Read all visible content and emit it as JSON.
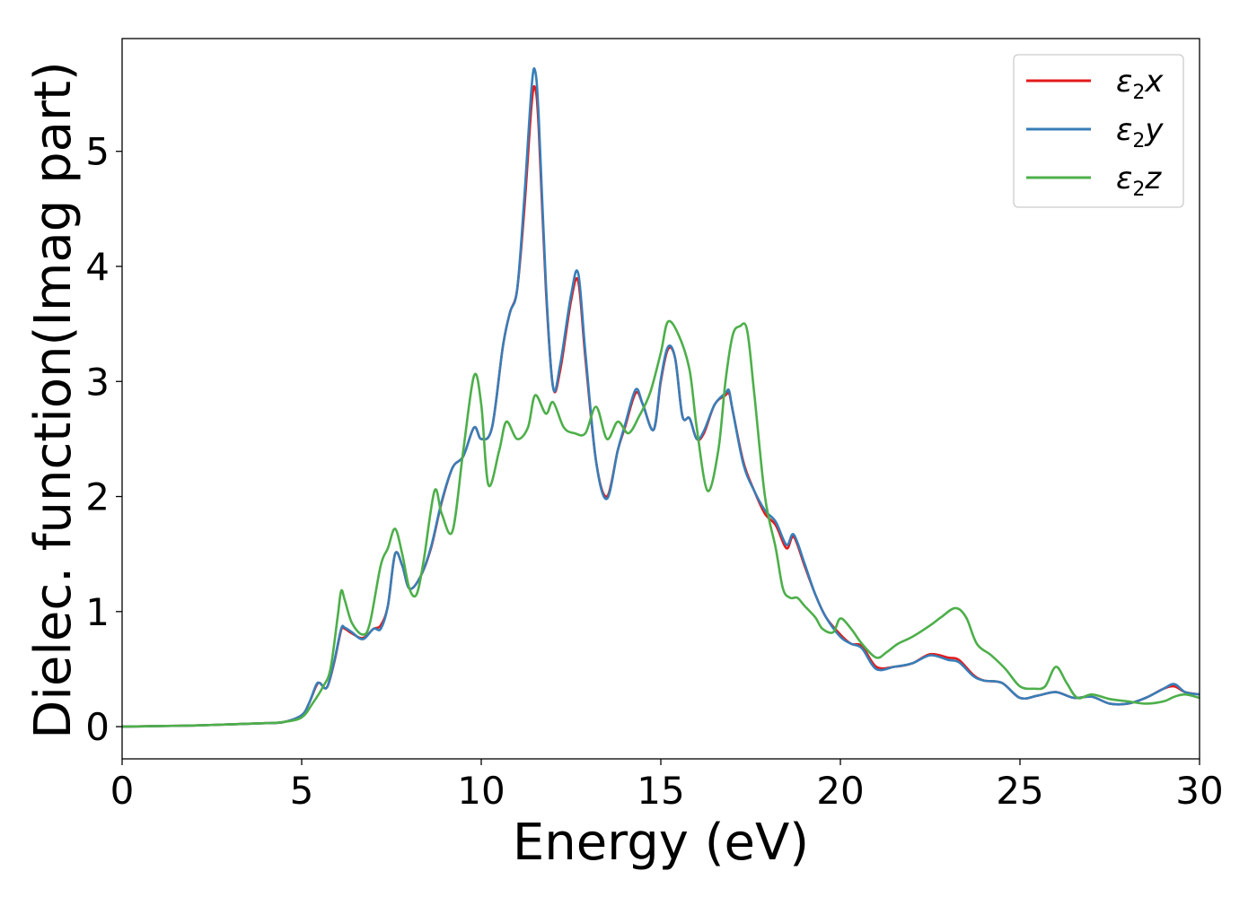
{
  "chart_data": {
    "type": "line",
    "title": "",
    "xlabel": "Energy (eV)",
    "ylabel": "Dielec. function(Imag part)",
    "xlim": [
      0,
      30
    ],
    "ylim": [
      -0.28,
      5.98
    ],
    "xticks": [
      "0",
      "5",
      "10",
      "15",
      "20",
      "25",
      "30"
    ],
    "yticks": [
      "0",
      "1",
      "2",
      "3",
      "4",
      "5"
    ],
    "grid": false,
    "legend_position": "top-right",
    "series": [
      {
        "name": "ε₂x",
        "legend_symbol": "ε",
        "legend_subscript": "2",
        "legend_axis": "x",
        "color": "#e41a1c",
        "x": [
          0,
          1,
          2,
          3,
          4,
          4.5,
          5,
          5.2,
          5.4,
          5.5,
          5.7,
          5.9,
          6.1,
          6.2,
          6.4,
          6.7,
          7.0,
          7.2,
          7.4,
          7.6,
          7.8,
          8.0,
          8.3,
          8.6,
          8.9,
          9.2,
          9.5,
          9.8,
          10.0,
          10.3,
          10.6,
          10.8,
          11.0,
          11.2,
          11.4,
          11.5,
          11.6,
          11.8,
          12.0,
          12.2,
          12.5,
          12.7,
          12.9,
          13.2,
          13.5,
          13.8,
          14.0,
          14.3,
          14.5,
          14.8,
          15.0,
          15.2,
          15.4,
          15.6,
          15.8,
          16.0,
          16.2,
          16.5,
          16.8,
          16.9,
          17.0,
          17.3,
          17.6,
          17.9,
          18.2,
          18.5,
          18.7,
          19.0,
          19.3,
          19.6,
          20.0,
          20.3,
          20.6,
          21.0,
          21.5,
          22.0,
          22.5,
          23.0,
          23.3,
          23.7,
          24.0,
          24.5,
          25.0,
          25.5,
          26.0,
          26.5,
          27.0,
          27.5,
          28.0,
          28.5,
          29.0,
          29.3,
          29.6,
          30.0
        ],
        "y": [
          0.0,
          0.005,
          0.01,
          0.02,
          0.03,
          0.04,
          0.1,
          0.2,
          0.35,
          0.38,
          0.34,
          0.55,
          0.84,
          0.85,
          0.81,
          0.77,
          0.85,
          0.88,
          1.05,
          1.5,
          1.4,
          1.2,
          1.3,
          1.55,
          1.95,
          2.25,
          2.35,
          2.6,
          2.5,
          2.6,
          3.3,
          3.6,
          3.8,
          4.5,
          5.4,
          5.55,
          5.2,
          3.8,
          2.95,
          3.1,
          3.7,
          3.87,
          3.2,
          2.3,
          2.0,
          2.4,
          2.6,
          2.9,
          2.8,
          2.58,
          3.0,
          3.28,
          3.2,
          2.7,
          2.68,
          2.5,
          2.55,
          2.8,
          2.88,
          2.9,
          2.75,
          2.3,
          2.05,
          1.85,
          1.75,
          1.55,
          1.65,
          1.4,
          1.15,
          0.95,
          0.8,
          0.72,
          0.7,
          0.52,
          0.52,
          0.55,
          0.63,
          0.6,
          0.58,
          0.45,
          0.4,
          0.38,
          0.25,
          0.27,
          0.3,
          0.25,
          0.26,
          0.2,
          0.2,
          0.25,
          0.33,
          0.35,
          0.3,
          0.28
        ]
      },
      {
        "name": "ε₂y",
        "legend_symbol": "ε",
        "legend_subscript": "2",
        "legend_axis": "y",
        "color": "#377eb8",
        "x": [
          0,
          1,
          2,
          3,
          4,
          4.5,
          5,
          5.2,
          5.4,
          5.5,
          5.7,
          5.9,
          6.1,
          6.2,
          6.4,
          6.7,
          7.0,
          7.2,
          7.4,
          7.6,
          7.8,
          8.0,
          8.3,
          8.6,
          8.9,
          9.2,
          9.5,
          9.8,
          10.0,
          10.3,
          10.6,
          10.8,
          11.0,
          11.2,
          11.4,
          11.5,
          11.6,
          11.8,
          12.0,
          12.2,
          12.5,
          12.7,
          12.9,
          13.2,
          13.5,
          13.8,
          14.0,
          14.3,
          14.5,
          14.8,
          15.0,
          15.2,
          15.4,
          15.6,
          15.8,
          16.0,
          16.2,
          16.5,
          16.8,
          16.9,
          17.0,
          17.3,
          17.6,
          17.9,
          18.2,
          18.5,
          18.7,
          19.0,
          19.3,
          19.6,
          20.0,
          20.3,
          20.6,
          21.0,
          21.5,
          22.0,
          22.5,
          23.0,
          23.3,
          23.7,
          24.0,
          24.5,
          25.0,
          25.5,
          26.0,
          26.5,
          27.0,
          27.5,
          28.0,
          28.5,
          29.0,
          29.3,
          29.6,
          30.0
        ],
        "y": [
          0.0,
          0.005,
          0.01,
          0.02,
          0.03,
          0.04,
          0.1,
          0.2,
          0.36,
          0.38,
          0.34,
          0.56,
          0.85,
          0.86,
          0.82,
          0.76,
          0.85,
          0.85,
          1.05,
          1.5,
          1.4,
          1.2,
          1.3,
          1.56,
          1.96,
          2.25,
          2.35,
          2.6,
          2.5,
          2.6,
          3.3,
          3.6,
          3.8,
          4.6,
          5.55,
          5.7,
          5.3,
          3.85,
          2.95,
          3.15,
          3.75,
          3.94,
          3.25,
          2.3,
          1.98,
          2.4,
          2.62,
          2.93,
          2.8,
          2.58,
          3.02,
          3.3,
          3.2,
          2.7,
          2.68,
          2.5,
          2.57,
          2.8,
          2.9,
          2.92,
          2.75,
          2.28,
          2.05,
          1.88,
          1.78,
          1.58,
          1.67,
          1.42,
          1.15,
          0.95,
          0.78,
          0.72,
          0.68,
          0.5,
          0.52,
          0.55,
          0.62,
          0.58,
          0.56,
          0.44,
          0.4,
          0.38,
          0.25,
          0.27,
          0.3,
          0.25,
          0.26,
          0.2,
          0.2,
          0.25,
          0.33,
          0.37,
          0.3,
          0.28
        ]
      },
      {
        "name": "ε₂z",
        "legend_symbol": "ε",
        "legend_subscript": "2",
        "legend_axis": "z",
        "color": "#4daf4a",
        "x": [
          0,
          1,
          2,
          3,
          4,
          4.5,
          5,
          5.3,
          5.6,
          5.8,
          6.0,
          6.1,
          6.2,
          6.4,
          6.7,
          6.9,
          7.2,
          7.4,
          7.6,
          7.8,
          8.0,
          8.2,
          8.4,
          8.7,
          8.9,
          9.2,
          9.5,
          9.8,
          10.0,
          10.2,
          10.5,
          10.7,
          11.0,
          11.3,
          11.5,
          11.8,
          12.0,
          12.3,
          12.6,
          12.9,
          13.2,
          13.5,
          13.8,
          14.1,
          14.4,
          14.7,
          15.0,
          15.2,
          15.5,
          15.8,
          16.0,
          16.3,
          16.6,
          16.8,
          17.0,
          17.2,
          17.4,
          17.6,
          17.9,
          18.2,
          18.4,
          18.6,
          18.8,
          19.0,
          19.3,
          19.5,
          19.8,
          20.0,
          20.3,
          20.6,
          21.0,
          21.3,
          21.6,
          22.0,
          22.5,
          22.8,
          23.2,
          23.5,
          23.8,
          24.2,
          24.6,
          25.0,
          25.4,
          25.7,
          26.0,
          26.3,
          26.6,
          27.0,
          27.5,
          28.0,
          28.5,
          29.0,
          29.3,
          29.6,
          30.0
        ],
        "y": [
          0.0,
          0.005,
          0.01,
          0.02,
          0.03,
          0.04,
          0.08,
          0.2,
          0.35,
          0.5,
          0.95,
          1.18,
          1.1,
          0.9,
          0.8,
          0.9,
          1.4,
          1.55,
          1.72,
          1.5,
          1.2,
          1.15,
          1.45,
          2.05,
          1.85,
          1.7,
          2.4,
          3.05,
          2.8,
          2.1,
          2.4,
          2.65,
          2.5,
          2.6,
          2.88,
          2.72,
          2.82,
          2.6,
          2.55,
          2.55,
          2.78,
          2.5,
          2.65,
          2.55,
          2.7,
          2.9,
          3.25,
          3.52,
          3.4,
          3.1,
          2.6,
          2.05,
          2.4,
          3.0,
          3.4,
          3.48,
          3.45,
          2.9,
          2.0,
          1.55,
          1.2,
          1.12,
          1.12,
          1.05,
          0.95,
          0.85,
          0.82,
          0.94,
          0.85,
          0.72,
          0.6,
          0.65,
          0.72,
          0.78,
          0.88,
          0.95,
          1.03,
          0.95,
          0.72,
          0.62,
          0.5,
          0.35,
          0.33,
          0.35,
          0.52,
          0.38,
          0.25,
          0.28,
          0.24,
          0.22,
          0.2,
          0.22,
          0.26,
          0.28,
          0.25
        ]
      }
    ]
  }
}
